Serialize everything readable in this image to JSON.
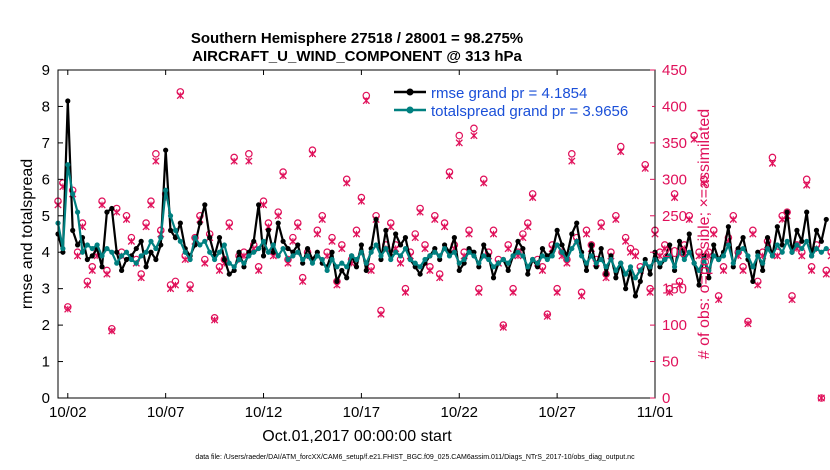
{
  "title_line1": "Southern Hemisphere 27518 / 28001 = 98.275%",
  "title_line2": "AIRCRAFT_U_WIND_COMPONENT @ 313 hPa",
  "xlabel": "Oct.01,2017 00:00:00 start",
  "ylabel_left": "rmse and totalspread",
  "ylabel_right": "# of obs: o=possible; ×=assimilated",
  "footer": "data file: /Users/raeder/DAI/ATM_forcXX/CAM6_setup/f.e21.FHIST_BGC.f09_025.CAM6assim.011/Diags_NTrS_2017-10/obs_diag_output.nc",
  "legend": {
    "rmse": "rmse grand pr = 4.1854",
    "spread": "totalspread grand pr = 3.9656"
  },
  "colors": {
    "rmse": "#000000",
    "spread": "#008080",
    "obs": "#e0105a",
    "legend_text": "#1a4fd8",
    "axis": "#000000"
  },
  "chart_data": {
    "type": "line",
    "x_unit": "days since Oct.01,2017 00:00:00",
    "xlim": [
      0.5,
      31
    ],
    "x_ticks": [
      1,
      6,
      11,
      16,
      21,
      26,
      31
    ],
    "x_tick_labels": [
      "10/02",
      "10/07",
      "10/12",
      "10/17",
      "10/22",
      "10/27",
      "11/01"
    ],
    "ylim_left": [
      0,
      9
    ],
    "y_ticks_left": [
      0,
      1,
      2,
      3,
      4,
      5,
      6,
      7,
      8,
      9
    ],
    "ylim_right": [
      0,
      450
    ],
    "y_ticks_right": [
      0,
      50,
      100,
      150,
      200,
      250,
      300,
      350,
      400,
      450
    ],
    "series": [
      {
        "name": "rmse",
        "axis": "left",
        "x0": 0.5,
        "dx": 0.25,
        "values": [
          4.5,
          4.0,
          8.15,
          4.6,
          4.2,
          4.4,
          3.8,
          3.9,
          4.1,
          3.6,
          5.1,
          5.2,
          4.0,
          3.5,
          3.8,
          3.9,
          4.1,
          4.3,
          3.6,
          4.0,
          3.8,
          4.2,
          6.8,
          4.6,
          4.4,
          4.8,
          4.1,
          3.9,
          4.2,
          4.8,
          5.3,
          4.4,
          3.9,
          4.4,
          3.8,
          3.4,
          3.5,
          4.0,
          3.6,
          4.0,
          4.3,
          5.3,
          3.9,
          4.6,
          4.0,
          4.8,
          4.3,
          4.1,
          4.0,
          4.2,
          3.7,
          4.1,
          3.8,
          4.0,
          3.7,
          3.6,
          4.0,
          3.2,
          3.5,
          3.3,
          3.9,
          3.6,
          4.2,
          3.5,
          4.1,
          4.9,
          3.8,
          4.6,
          3.9,
          4.5,
          4.2,
          4.4,
          3.8,
          3.6,
          3.4,
          3.7,
          3.9,
          4.1,
          3.8,
          4.2,
          4.0,
          4.4,
          3.5,
          3.7,
          4.1,
          4.0,
          3.6,
          4.2,
          3.9,
          3.3,
          3.7,
          3.8,
          3.5,
          3.9,
          4.3,
          4.1,
          3.4,
          3.8,
          3.6,
          4.1,
          3.9,
          4.0,
          4.6,
          4.2,
          3.9,
          4.5,
          4.8,
          4.0,
          3.5,
          4.2,
          3.6,
          4.1,
          3.4,
          3.9,
          3.3,
          3.7,
          3.0,
          3.5,
          2.8,
          3.2,
          3.8,
          3.4,
          4.0,
          3.6,
          3.8,
          4.2,
          3.5,
          4.3,
          3.9,
          4.5,
          3.7,
          3.1,
          3.9,
          3.3,
          4.2,
          3.8,
          4.0,
          4.7,
          3.6,
          4.1,
          4.4,
          3.8,
          3.2,
          4.0,
          3.5,
          4.4,
          3.9,
          4.7,
          4.2,
          5.1,
          4.0,
          4.6,
          4.3,
          5.1,
          3.9,
          4.6,
          4.3,
          4.9
        ]
      },
      {
        "name": "totalspread",
        "axis": "left",
        "x0": 0.5,
        "dx": 0.25,
        "values": [
          4.8,
          4.1,
          6.4,
          5.6,
          5.1,
          4.0,
          4.2,
          4.1,
          4.2,
          3.9,
          4.1,
          4.0,
          3.7,
          3.9,
          4.0,
          3.8,
          3.7,
          3.9,
          4.0,
          4.3,
          4.1,
          4.4,
          5.7,
          5.0,
          4.6,
          4.3,
          4.0,
          3.8,
          4.4,
          4.2,
          4.3,
          4.0,
          3.8,
          4.0,
          4.2,
          3.7,
          3.6,
          3.8,
          3.7,
          3.9,
          4.0,
          4.1,
          4.3,
          4.0,
          4.2,
          3.9,
          4.1,
          3.8,
          3.9,
          4.0,
          3.8,
          3.9,
          3.7,
          3.9,
          3.8,
          3.5,
          3.8,
          3.6,
          3.7,
          3.6,
          3.9,
          3.8,
          4.0,
          3.7,
          4.0,
          4.2,
          3.9,
          4.1,
          3.8,
          4.0,
          3.9,
          4.1,
          3.8,
          3.7,
          3.6,
          3.8,
          3.9,
          4.0,
          3.9,
          4.1,
          3.9,
          4.0,
          3.7,
          3.8,
          4.0,
          3.9,
          3.7,
          3.9,
          3.8,
          3.6,
          3.7,
          3.8,
          3.7,
          3.9,
          4.0,
          3.9,
          3.6,
          3.8,
          3.7,
          3.9,
          3.8,
          3.9,
          4.2,
          4.0,
          3.8,
          4.1,
          4.3,
          3.9,
          3.7,
          3.9,
          3.7,
          3.8,
          3.6,
          3.8,
          3.5,
          3.7,
          3.4,
          3.6,
          3.3,
          3.5,
          3.7,
          3.6,
          3.8,
          3.7,
          3.8,
          3.9,
          3.6,
          4.0,
          3.8,
          4.0,
          3.7,
          3.5,
          3.8,
          3.5,
          3.9,
          3.8,
          3.9,
          4.2,
          3.7,
          4.0,
          4.1,
          3.9,
          3.6,
          3.9,
          3.7,
          4.1,
          3.9,
          4.2,
          4.0,
          4.3,
          4.0,
          4.2,
          4.1,
          4.3,
          3.9,
          4.1,
          4.0,
          4.1
        ]
      },
      {
        "name": "obs possible",
        "axis": "right",
        "x0": 0.5,
        "dx": 0.25,
        "values": [
          270,
          295,
          125,
          285,
          200,
          240,
          160,
          180,
          200,
          270,
          175,
          95,
          260,
          200,
          250,
          220,
          190,
          170,
          240,
          270,
          335,
          230,
          280,
          155,
          160,
          420,
          195,
          155,
          220,
          250,
          190,
          225,
          110,
          180,
          190,
          240,
          330,
          195,
          200,
          335,
          210,
          180,
          270,
          240,
          200,
          255,
          310,
          190,
          220,
          240,
          165,
          200,
          340,
          230,
          250,
          200,
          220,
          160,
          210,
          300,
          190,
          230,
          275,
          415,
          180,
          250,
          120,
          210,
          240,
          210,
          190,
          150,
          200,
          225,
          260,
          210,
          180,
          250,
          170,
          240,
          310,
          210,
          360,
          200,
          230,
          370,
          150,
          300,
          200,
          230,
          190,
          100,
          210,
          150,
          200,
          225,
          240,
          280,
          190,
          180,
          115,
          210,
          150,
          200,
          190,
          335,
          220,
          145,
          230,
          210,
          190,
          240,
          170,
          200,
          250,
          345,
          220,
          205,
          200,
          180,
          320,
          150,
          230,
          200,
          210,
          150,
          280,
          160,
          210,
          250,
          360,
          200,
          300,
          200,
          230,
          140,
          180,
          220,
          250,
          200,
          180,
          105,
          230,
          160,
          200,
          215,
          330,
          200,
          250,
          255,
          140,
          210,
          200,
          300,
          180,
          210,
          0,
          175,
          200,
          160
        ]
      },
      {
        "name": "obs assimilated",
        "axis": "right",
        "x0": 0.5,
        "dx": 0.25,
        "values": [
          265,
          290,
          122,
          280,
          195,
          235,
          155,
          175,
          195,
          265,
          170,
          92,
          255,
          195,
          245,
          215,
          185,
          165,
          235,
          265,
          325,
          225,
          275,
          150,
          155,
          415,
          190,
          150,
          215,
          245,
          185,
          220,
          107,
          175,
          185,
          235,
          325,
          190,
          195,
          325,
          205,
          175,
          265,
          235,
          195,
          250,
          305,
          185,
          215,
          235,
          160,
          195,
          335,
          225,
          245,
          195,
          215,
          155,
          205,
          295,
          185,
          225,
          270,
          408,
          175,
          245,
          115,
          205,
          235,
          205,
          185,
          145,
          195,
          220,
          255,
          205,
          175,
          245,
          165,
          235,
          305,
          205,
          350,
          195,
          225,
          360,
          145,
          295,
          195,
          225,
          185,
          97,
          205,
          145,
          195,
          220,
          235,
          275,
          185,
          175,
          112,
          205,
          145,
          195,
          185,
          325,
          215,
          140,
          225,
          205,
          185,
          235,
          165,
          195,
          245,
          338,
          215,
          200,
          195,
          175,
          315,
          145,
          225,
          195,
          205,
          145,
          275,
          155,
          205,
          245,
          355,
          195,
          295,
          195,
          225,
          135,
          175,
          215,
          245,
          195,
          175,
          102,
          225,
          155,
          195,
          210,
          322,
          195,
          245,
          250,
          135,
          205,
          195,
          292,
          175,
          205,
          0,
          170,
          195,
          155
        ]
      }
    ]
  }
}
